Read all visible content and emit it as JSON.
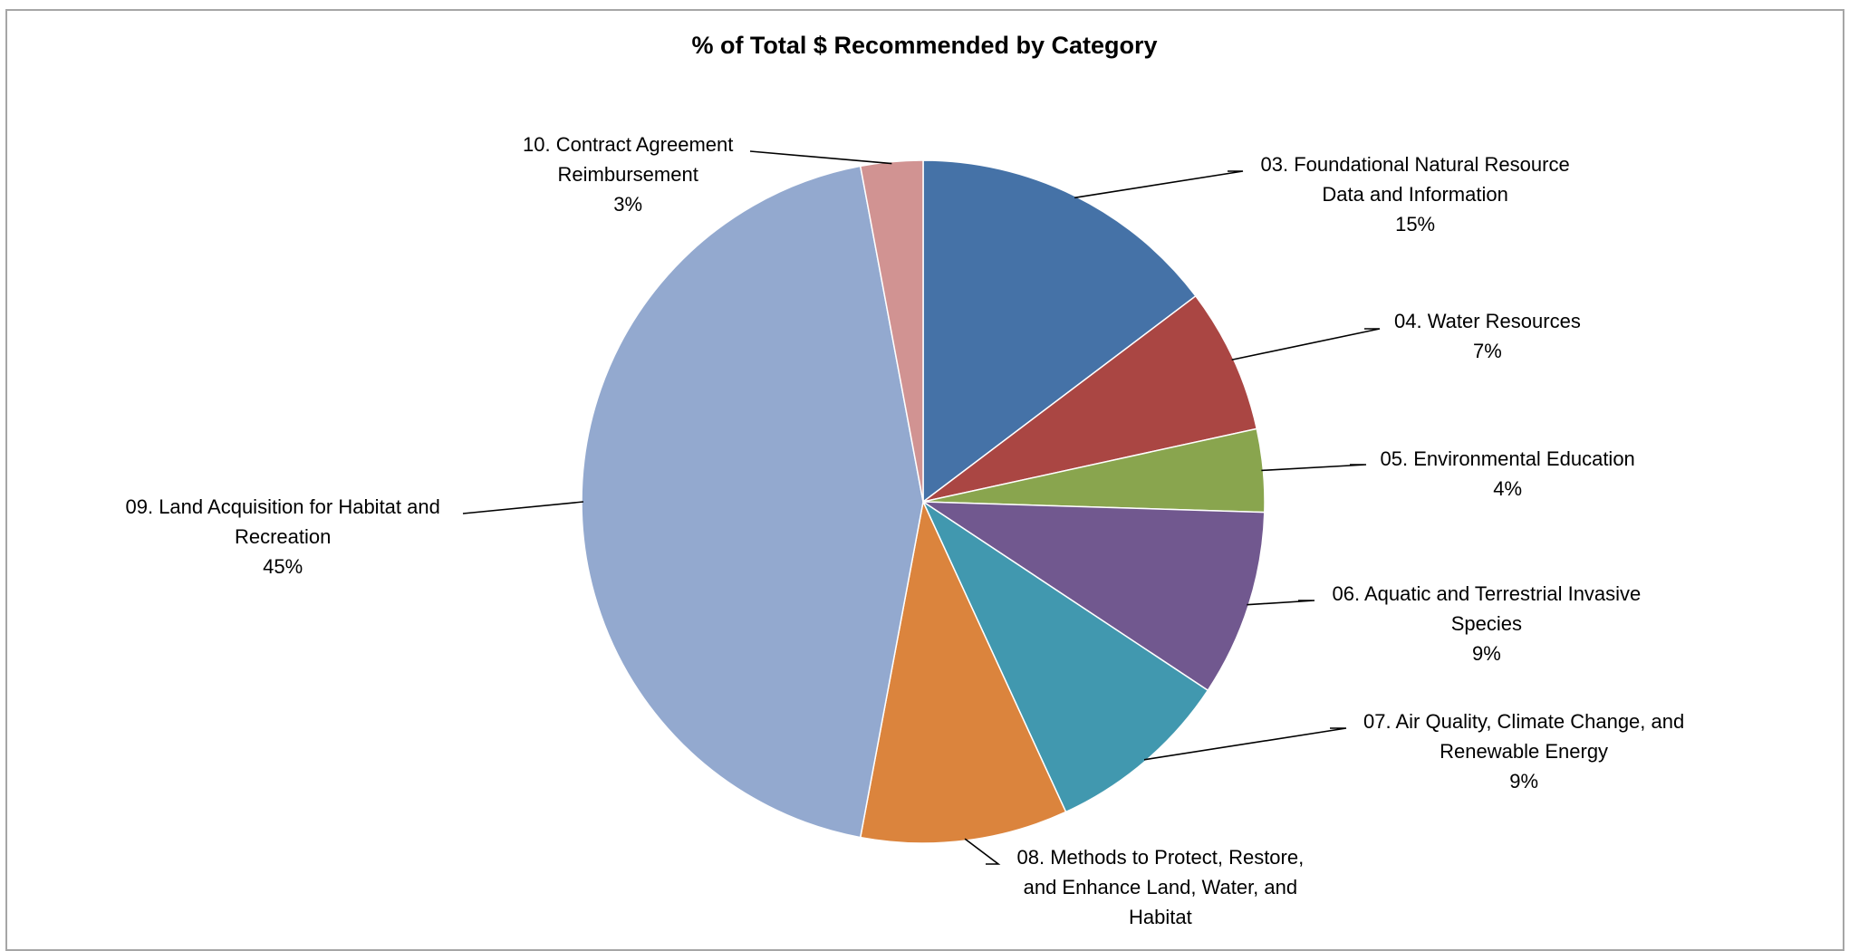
{
  "chart_data": {
    "type": "pie",
    "title": "% of Total $ Recommended by Category",
    "start_angle": "12 o'clock",
    "direction": "clockwise",
    "slices": [
      {
        "label_lines": [
          "03. Foundational Natural Resource",
          "Data and Information"
        ],
        "percent_label": "15%",
        "value": 15,
        "color": "#4572A7"
      },
      {
        "label_lines": [
          "04. Water Resources"
        ],
        "percent_label": "7%",
        "value": 7,
        "color": "#AA4643"
      },
      {
        "label_lines": [
          "05. Environmental Education"
        ],
        "percent_label": "4%",
        "value": 4,
        "color": "#89A54E"
      },
      {
        "label_lines": [
          "06. Aquatic and Terrestrial Invasive",
          "Species"
        ],
        "percent_label": "9%",
        "value": 9,
        "color": "#71588F"
      },
      {
        "label_lines": [
          "07. Air Quality, Climate Change, and",
          "Renewable Energy"
        ],
        "percent_label": "9%",
        "value": 9,
        "color": "#4198AF"
      },
      {
        "label_lines": [
          "08. Methods to Protect, Restore,",
          "and Enhance Land, Water, and",
          "Habitat"
        ],
        "percent_label": "",
        "value": 10,
        "color": "#DB843D"
      },
      {
        "label_lines": [
          "09. Land Acquisition for Habitat and",
          "Recreation"
        ],
        "percent_label": "45%",
        "value": 45,
        "color": "#93A9CF"
      },
      {
        "label_lines": [
          "10. Contract Agreement",
          "Reimbursement"
        ],
        "percent_label": "3%",
        "value": 3,
        "color": "#D19392"
      }
    ]
  }
}
